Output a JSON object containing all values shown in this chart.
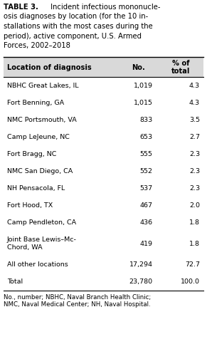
{
  "title_line1_bold": "TABLE 3.",
  "title_line1_rest": " Incident infectious mononucle-",
  "title_lines": [
    "osis diagnoses by location (for the 10 in-",
    "stallations with the most cases during the",
    "period), active component, U.S. Armed",
    "Forces, 2002–2018"
  ],
  "header": [
    "Location of diagnosis",
    "No.",
    "% of\ntotal"
  ],
  "rows": [
    [
      "NBHC Great Lakes, IL",
      "1,019",
      "4.3"
    ],
    [
      "Fort Benning, GA",
      "1,015",
      "4.3"
    ],
    [
      "NMC Portsmouth, VA",
      "833",
      "3.5"
    ],
    [
      "Camp LeJeune, NC",
      "653",
      "2.7"
    ],
    [
      "Fort Bragg, NC",
      "555",
      "2.3"
    ],
    [
      "NMC San Diego, CA",
      "552",
      "2.3"
    ],
    [
      "NH Pensacola, FL",
      "537",
      "2.3"
    ],
    [
      "Fort Hood, TX",
      "467",
      "2.0"
    ],
    [
      "Camp Pendleton, CA",
      "436",
      "1.8"
    ],
    [
      "Joint Base Lewis–Mc-\nChord, WA",
      "419",
      "1.8"
    ],
    [
      "All other locations",
      "17,294",
      "72.7"
    ],
    [
      "Total",
      "23,780",
      "100.0"
    ]
  ],
  "footer": "No., number; NBHC, Naval Branch Health Clinic;\nNMC, Naval Medical Center; NH, Naval Hospital.",
  "header_bg": "#d9d9d9",
  "bg_color": "#ffffff",
  "font_size": 6.8,
  "title_font_size": 7.2,
  "footer_font_size": 6.2
}
